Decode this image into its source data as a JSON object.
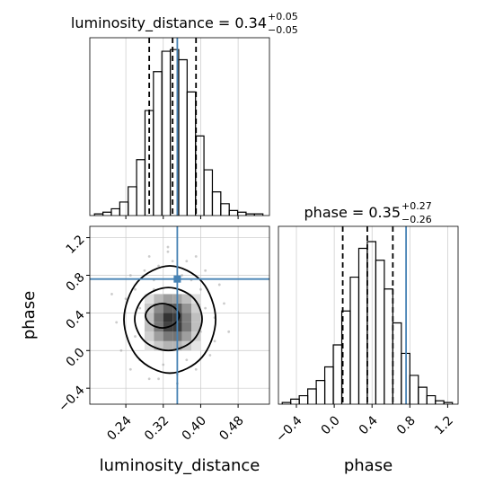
{
  "chart_data": [
    {
      "type": "histogram",
      "title": "luminosity_distance = 0.34",
      "title_plus": "+0.05",
      "title_minus": "−0.05",
      "bins": [
        0.173,
        0.191,
        0.209,
        0.227,
        0.245,
        0.263,
        0.281,
        0.299,
        0.317,
        0.335,
        0.353,
        0.371,
        0.389,
        0.407,
        0.425,
        0.443,
        0.461,
        0.479,
        0.497,
        0.515,
        0.533
      ],
      "counts": [
        1,
        2,
        4,
        8,
        17,
        33,
        62,
        85,
        97,
        98,
        92,
        73,
        47,
        27,
        14,
        7,
        3,
        2,
        1,
        1
      ],
      "quantiles": [
        0.29,
        0.34,
        0.39
      ],
      "truth": 0.35,
      "xlim": [
        0.163,
        0.547
      ],
      "ylim": [
        0,
        105
      ],
      "color": "#000000",
      "truth_color": "#4682b4",
      "grid": true
    },
    {
      "type": "histogram",
      "title": "phase = 0.35",
      "title_plus": "+0.27",
      "title_minus": "−0.26",
      "bins": [
        -0.55,
        -0.46,
        -0.37,
        -0.28,
        -0.19,
        -0.1,
        -0.01,
        0.08,
        0.17,
        0.26,
        0.35,
        0.44,
        0.53,
        0.62,
        0.71,
        0.8,
        0.89,
        0.98,
        1.07,
        1.16,
        1.25
      ],
      "counts": [
        1,
        3,
        5,
        9,
        14,
        22,
        35,
        55,
        75,
        92,
        96,
        85,
        68,
        48,
        30,
        17,
        10,
        5,
        2,
        1
      ],
      "quantiles": [
        0.09,
        0.35,
        0.62
      ],
      "truth": 0.76,
      "xlim": [
        -0.59,
        1.31
      ],
      "ylim": [
        0,
        105
      ],
      "xticks": [
        {
          "value": -0.4,
          "label": "−0.4"
        },
        {
          "value": 0,
          "label": "0.0"
        },
        0.4,
        0.8,
        1.2
      ],
      "xlabel": "phase",
      "color": "#000000",
      "truth_color": "#4682b4",
      "grid": true
    },
    {
      "type": "scatter",
      "xlabel": "luminosity_distance",
      "ylabel": "phase",
      "xlim": [
        0.163,
        0.547
      ],
      "ylim": [
        -0.57,
        1.32
      ],
      "xticks": [
        0.24,
        0.32,
        {
          "value": 0.4,
          "label": "0.40"
        },
        0.48
      ],
      "yticks": [
        {
          "value": -0.4,
          "label": "−0.4"
        },
        {
          "value": 0,
          "label": "0.0"
        },
        0.4,
        0.8,
        1.2
      ],
      "x": [
        0.22,
        0.25,
        0.27,
        0.29,
        0.31,
        0.33,
        0.35,
        0.37,
        0.39,
        0.41,
        0.43,
        0.45,
        0.24,
        0.26,
        0.28,
        0.3,
        0.32,
        0.34,
        0.36,
        0.38,
        0.4,
        0.42,
        0.44,
        0.23,
        0.27,
        0.31,
        0.35,
        0.39,
        0.43,
        0.21,
        0.46,
        0.25,
        0.29,
        0.33,
        0.37,
        0.41,
        0.3,
        0.36,
        0.26,
        0.4
      ],
      "y": [
        0.3,
        0.8,
        -0.1,
        1.0,
        -0.3,
        1.1,
        -0.35,
        0.95,
        -0.2,
        0.85,
        0.1,
        0.5,
        0.55,
        0.15,
        0.85,
        0.75,
        -0.15,
        0.95,
        0.05,
        0.75,
        0.65,
        -0.05,
        0.7,
        0.0,
        0.45,
        0.9,
        -0.25,
        1.0,
        0.35,
        0.6,
        0.2,
        -0.2,
        -0.3,
        1.05,
        -0.1,
        0.45,
        0.65,
        0.8,
        0.65,
        0.2
      ],
      "hist2d": {
        "xbins": [
          0.28,
          0.3,
          0.32,
          0.34,
          0.36,
          0.38,
          0.4
        ],
        "ybins": [
          0.0,
          0.1,
          0.2,
          0.3,
          0.4,
          0.5,
          0.6
        ],
        "counts": [
          [
            5,
            10,
            14,
            14,
            10,
            5
          ],
          [
            9,
            18,
            25,
            26,
            18,
            9
          ],
          [
            12,
            25,
            35,
            36,
            25,
            12
          ],
          [
            12,
            26,
            38,
            36,
            24,
            12
          ],
          [
            10,
            22,
            30,
            30,
            20,
            9
          ],
          [
            6,
            13,
            18,
            17,
            12,
            6
          ]
        ]
      },
      "contours": [
        {
          "x": [
            0.432,
            0.403,
            0.334,
            0.265,
            0.236,
            0.265,
            0.334,
            0.403
          ],
          "y": [
            0.33,
            0.73,
            0.9,
            0.73,
            0.33,
            -0.07,
            -0.24,
            -0.07
          ]
        },
        {
          "x": [
            0.403,
            0.382,
            0.331,
            0.28,
            0.259,
            0.28,
            0.331,
            0.382
          ],
          "y": [
            0.335,
            0.57,
            0.67,
            0.57,
            0.335,
            0.1,
            0.0,
            0.1
          ]
        },
        {
          "x": [
            0.354,
            0.343,
            0.318,
            0.293,
            0.282,
            0.293,
            0.318,
            0.343
          ],
          "y": [
            0.37,
            0.46,
            0.5,
            0.46,
            0.37,
            0.28,
            0.24,
            0.28
          ]
        }
      ],
      "point_color": "#999999",
      "contour_color": "#000000",
      "grid": true
    }
  ]
}
